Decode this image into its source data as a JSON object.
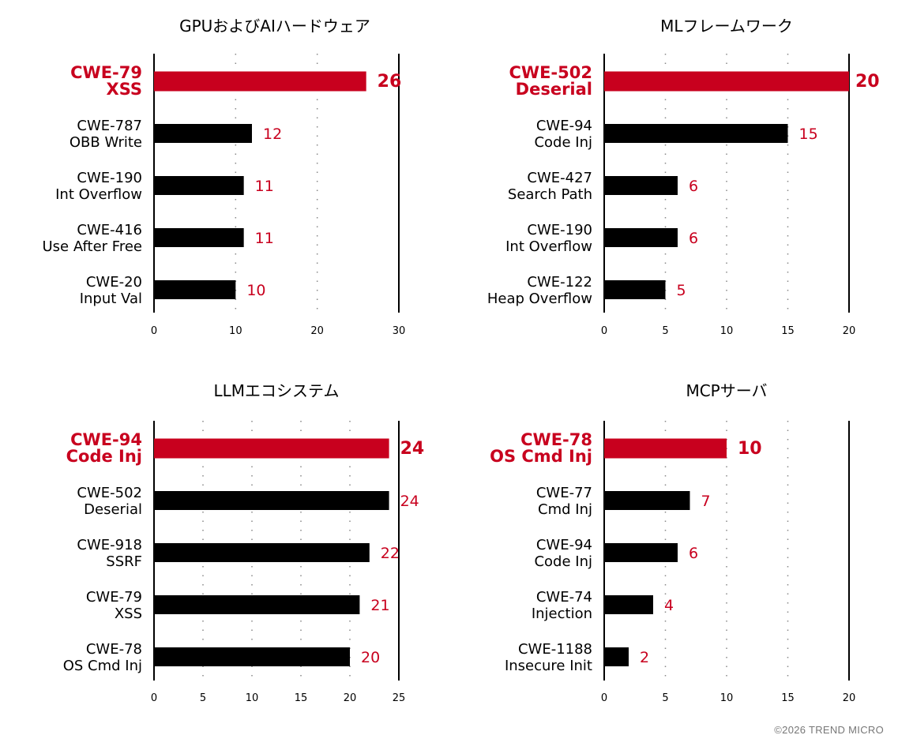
{
  "colors": {
    "highlight": "#c8001e",
    "bar": "#000000",
    "label_highlight": "#c8001e",
    "value": "#c8001e",
    "grid": "#888888",
    "copyright": "#777777"
  },
  "copyright": "©2026 TREND MICRO",
  "chart_data": [
    {
      "type": "bar",
      "orientation": "horizontal",
      "title": "GPUおよびAIハードウェア",
      "categories": [
        [
          "CWE-79",
          "XSS"
        ],
        [
          "CWE-787",
          "OBB Write"
        ],
        [
          "CWE-190",
          "Int Overflow"
        ],
        [
          "CWE-416",
          "Use After Free"
        ],
        [
          "CWE-20",
          "Input Val"
        ]
      ],
      "values": [
        26,
        12,
        11,
        11,
        10
      ],
      "highlight_index": 0,
      "xlim": [
        0,
        30
      ],
      "xticks": [
        0,
        10,
        20,
        30
      ],
      "grid": "dotted-vertical"
    },
    {
      "type": "bar",
      "orientation": "horizontal",
      "title": "MLフレームワーク",
      "categories": [
        [
          "CWE-502",
          "Deserial"
        ],
        [
          "CWE-94",
          "Code Inj"
        ],
        [
          "CWE-427",
          "Search Path"
        ],
        [
          "CWE-190",
          "Int Overflow"
        ],
        [
          "CWE-122",
          "Heap Overflow"
        ]
      ],
      "values": [
        20,
        15,
        6,
        6,
        5
      ],
      "highlight_index": 0,
      "xlim": [
        0,
        20
      ],
      "xticks": [
        0,
        5,
        10,
        15,
        20
      ],
      "grid": "dotted-vertical"
    },
    {
      "type": "bar",
      "orientation": "horizontal",
      "title": "LLMエコシステム",
      "categories": [
        [
          "CWE-94",
          "Code Inj"
        ],
        [
          "CWE-502",
          "Deserial"
        ],
        [
          "CWE-918",
          "SSRF"
        ],
        [
          "CWE-79",
          "XSS"
        ],
        [
          "CWE-78",
          "OS Cmd Inj"
        ]
      ],
      "values": [
        24,
        24,
        22,
        21,
        20
      ],
      "highlight_index": 0,
      "xlim": [
        0,
        25
      ],
      "xticks": [
        0,
        5,
        10,
        15,
        20,
        25
      ],
      "grid": "dotted-vertical"
    },
    {
      "type": "bar",
      "orientation": "horizontal",
      "title": "MCPサーバ",
      "categories": [
        [
          "CWE-78",
          "OS Cmd Inj"
        ],
        [
          "CWE-77",
          "Cmd Inj"
        ],
        [
          "CWE-94",
          "Code Inj"
        ],
        [
          "CWE-74",
          "Injection"
        ],
        [
          "CWE-1188",
          "Insecure Init"
        ]
      ],
      "values": [
        10,
        7,
        6,
        4,
        2
      ],
      "highlight_index": 0,
      "xlim": [
        0,
        20
      ],
      "xticks": [
        0,
        5,
        10,
        15,
        20
      ],
      "grid": "dotted-vertical"
    }
  ]
}
